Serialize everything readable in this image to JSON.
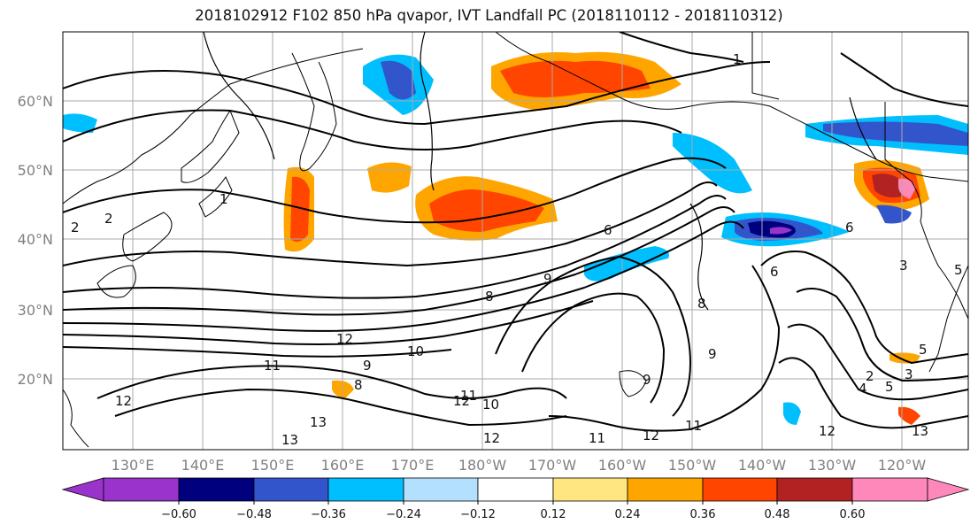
{
  "title": "2018102912 F102 850 hPa qvapor, IVT Landfall PC (2018110112 - 2018110312)",
  "lat_labels": [
    "60°N",
    "50°N",
    "40°N",
    "30°N",
    "20°N"
  ],
  "lon_labels": [
    "130°E",
    "140°E",
    "150°E",
    "160°E",
    "170°E",
    "180°W",
    "170°W",
    "160°W",
    "150°W",
    "140°W",
    "130°W",
    "120°W"
  ],
  "colorbar": {
    "tick_labels": [
      "−0.60",
      "−0.48",
      "−0.36",
      "−0.24",
      "−0.12",
      "0.12",
      "0.24",
      "0.36",
      "0.48",
      "0.60"
    ],
    "colors": [
      "#9933cc",
      "#00007f",
      "#3355cc",
      "#00bfff",
      "#b3e0ff",
      "#ffffff",
      "#ffe680",
      "#ffa500",
      "#ff4500",
      "#b22222",
      "#ff88bb"
    ]
  },
  "contour_labels": [
    "1",
    "2",
    "2",
    "1",
    "6",
    "6",
    "8",
    "9",
    "12",
    "11",
    "10",
    "9",
    "8",
    "12",
    "12",
    "13",
    "13",
    "11",
    "12",
    "12",
    "11",
    "12",
    "2",
    "3",
    "4",
    "5",
    "3",
    "5",
    "9",
    "8",
    "6",
    "5",
    "9",
    "11",
    "13",
    "10"
  ]
}
